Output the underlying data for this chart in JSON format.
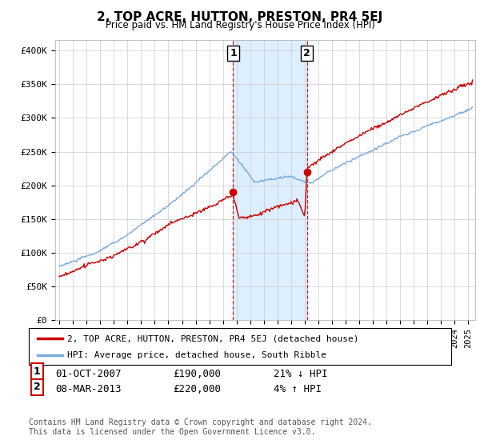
{
  "title": "2, TOP ACRE, HUTTON, PRESTON, PR4 5EJ",
  "subtitle": "Price paid vs. HM Land Registry's House Price Index (HPI)",
  "ylabel_ticks": [
    "£0",
    "£50K",
    "£100K",
    "£150K",
    "£200K",
    "£250K",
    "£300K",
    "£350K",
    "£400K"
  ],
  "ytick_values": [
    0,
    50000,
    100000,
    150000,
    200000,
    250000,
    300000,
    350000,
    400000
  ],
  "ylim": [
    0,
    415000
  ],
  "xlim_start": 1994.7,
  "xlim_end": 2025.5,
  "transaction1": {
    "date_num": 2007.75,
    "price": 190000,
    "label": "1",
    "pct": "21% ↓ HPI",
    "date_str": "01-OCT-2007"
  },
  "transaction2": {
    "date_num": 2013.17,
    "price": 220000,
    "label": "2",
    "pct": "4% ↑ HPI",
    "date_str": "08-MAR-2013"
  },
  "line1_color": "#cc0000",
  "line2_color": "#7aaadd",
  "shade_color": "#ddeeff",
  "grid_color": "#cccccc",
  "legend1_label": "2, TOP ACRE, HUTTON, PRESTON, PR4 5EJ (detached house)",
  "legend2_label": "HPI: Average price, detached house, South Ribble",
  "footer1": "Contains HM Land Registry data © Crown copyright and database right 2024.",
  "footer2": "This data is licensed under the Open Government Licence v3.0.",
  "background_color": "#ffffff"
}
